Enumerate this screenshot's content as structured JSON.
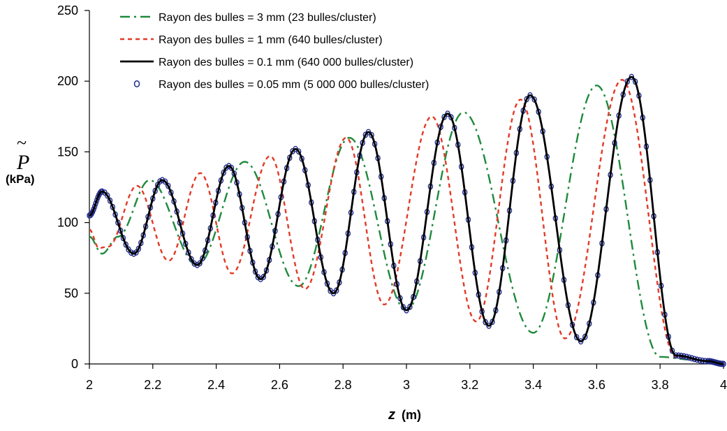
{
  "chart_data": {
    "type": "line",
    "title": "",
    "ylabel_symbol": "P",
    "ylabel_unit": "(kPa)",
    "xlabel_var": "z",
    "xlabel_unit": "(m)",
    "xlim": [
      2,
      4
    ],
    "ylim": [
      0,
      250
    ],
    "x_ticks": [
      "2",
      "2.2",
      "2.4",
      "2.6",
      "2.8",
      "3",
      "3.2",
      "3.4",
      "3.6",
      "3.8",
      "4"
    ],
    "y_ticks": [
      "0",
      "50",
      "100",
      "150",
      "200",
      "250"
    ],
    "grid": false,
    "legend_position": "top-left",
    "series": [
      {
        "name": "Rayon des bulles = 3 mm (23 bulles/cluster)",
        "style": "dashdot",
        "color": "#1e8a3c",
        "x": [
          2.0,
          2.04,
          2.09,
          2.19,
          2.34,
          2.49,
          2.66,
          2.82,
          3.0,
          3.18,
          3.4,
          3.6,
          3.8,
          3.9,
          4.0
        ],
        "y": [
          90,
          78,
          90,
          130,
          70,
          143,
          55,
          160,
          38,
          178,
          22,
          197,
          5,
          3,
          0
        ]
      },
      {
        "name": "Rayon des bulles = 1 mm (640 bulles/cluster)",
        "style": "dashed",
        "color": "#e23a26",
        "x": [
          2.0,
          2.03,
          2.06,
          2.15,
          2.25,
          2.35,
          2.45,
          2.57,
          2.68,
          2.81,
          2.93,
          3.08,
          3.22,
          3.36,
          3.5,
          3.68,
          3.85,
          3.95,
          4.0
        ],
        "y": [
          95,
          82,
          83,
          126,
          73,
          135,
          64,
          147,
          53,
          160,
          42,
          175,
          30,
          187,
          18,
          201,
          5,
          2,
          0
        ]
      },
      {
        "name": "Rayon des bulles = 0.1 mm (640 000 bulles/cluster)",
        "style": "solid",
        "color": "#000000",
        "x": [
          2.0,
          2.04,
          2.14,
          2.23,
          2.34,
          2.44,
          2.54,
          2.65,
          2.77,
          2.88,
          3.0,
          3.13,
          3.26,
          3.39,
          3.55,
          3.71,
          3.85,
          3.95,
          4.0
        ],
        "y": [
          105,
          122,
          78,
          130,
          70,
          140,
          60,
          152,
          50,
          164,
          38,
          177,
          27,
          190,
          16,
          203,
          6,
          2,
          0
        ]
      },
      {
        "name": "Rayon des bulles = 0.05 mm (5 000 000 bulles/cluster)",
        "style": "markers",
        "color": "#1f2a8c",
        "x": [
          2.0,
          2.04,
          2.14,
          2.23,
          2.34,
          2.44,
          2.54,
          2.65,
          2.77,
          2.88,
          3.0,
          3.13,
          3.26,
          3.39,
          3.55,
          3.71,
          3.85,
          3.95,
          4.0
        ],
        "y": [
          105,
          122,
          78,
          130,
          70,
          140,
          60,
          152,
          50,
          164,
          38,
          177,
          27,
          190,
          16,
          203,
          6,
          2,
          0
        ]
      }
    ]
  }
}
